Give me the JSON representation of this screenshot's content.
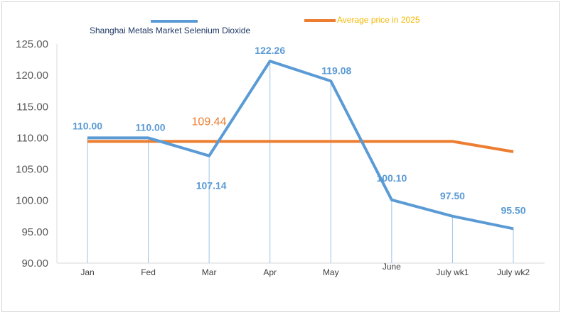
{
  "chart_data": {
    "type": "line",
    "title": "",
    "xlabel": "",
    "ylabel": "",
    "categories": [
      "Jan",
      "Fed",
      "Mar",
      "Apr",
      "May",
      "June",
      "July wk1",
      "July wk2"
    ],
    "ylim": [
      90,
      125
    ],
    "yticks": [
      "90.00",
      "95.00",
      "100.00",
      "105.00",
      "110.00",
      "115.00",
      "120.00",
      "125.00"
    ],
    "grid": false,
    "legend_position": "top",
    "series": [
      {
        "name": "Shanghai Metals Market Selenium Dioxide",
        "color": "#5b9bd5",
        "values": [
          110.0,
          110.0,
          107.14,
          122.26,
          119.08,
          100.1,
          97.5,
          95.5
        ],
        "labels": [
          "110.00",
          "110.00",
          "107.14",
          "122.26",
          "119.08",
          "100.10",
          "97.50",
          "95.50"
        ]
      },
      {
        "name": "Average price in 2025",
        "color": "#ed7d31",
        "text_color": "#f5b800",
        "values": [
          109.44,
          109.44,
          109.44,
          109.44,
          109.44,
          109.44,
          109.44,
          107.8
        ],
        "annotation": "109.44"
      }
    ]
  }
}
